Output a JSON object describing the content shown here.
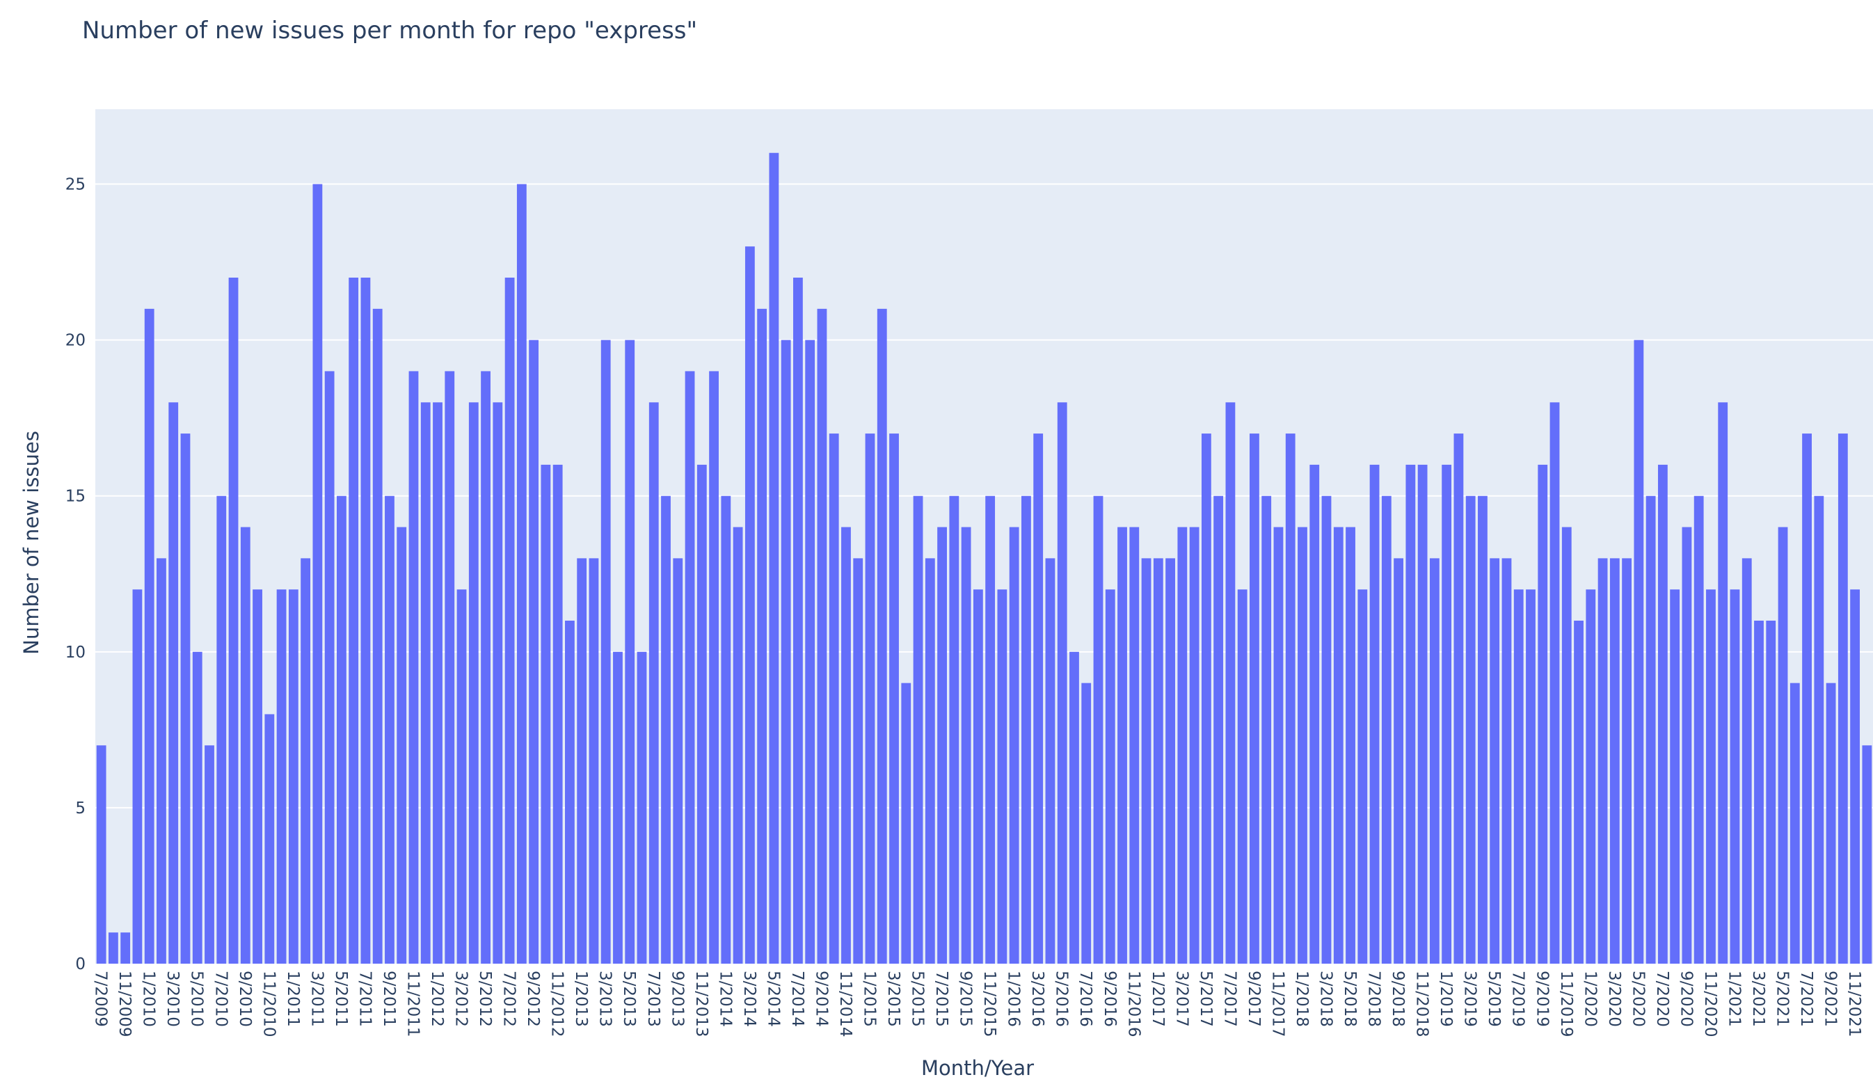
{
  "chart_data": {
    "type": "bar",
    "title": "Number of new issues per month for repo \"express\"",
    "xlabel": "Month/Year",
    "ylabel": "Number of new issues",
    "ylim": [
      0,
      27.4
    ],
    "y_ticks": [
      0,
      5,
      10,
      15,
      20,
      25
    ],
    "grid": true,
    "colors": {
      "bar": "#636efa",
      "plot_bg": "#e5ecf6",
      "grid": "#ffffff",
      "text": "#2a3f5f"
    },
    "categories": [
      "7/2009",
      "10/2009",
      "11/2009",
      "12/2009",
      "1/2010",
      "2/2010",
      "3/2010",
      "4/2010",
      "5/2010",
      "6/2010",
      "7/2010",
      "8/2010",
      "9/2010",
      "10/2010",
      "11/2010",
      "12/2010",
      "1/2011",
      "2/2011",
      "3/2011",
      "4/2011",
      "5/2011",
      "6/2011",
      "7/2011",
      "8/2011",
      "9/2011",
      "10/2011",
      "11/2011",
      "12/2011",
      "1/2012",
      "2/2012",
      "3/2012",
      "4/2012",
      "5/2012",
      "6/2012",
      "7/2012",
      "8/2012",
      "9/2012",
      "10/2012",
      "11/2012",
      "12/2012",
      "1/2013",
      "2/2013",
      "3/2013",
      "4/2013",
      "5/2013",
      "6/2013",
      "7/2013",
      "8/2013",
      "9/2013",
      "10/2013",
      "11/2013",
      "12/2013",
      "1/2014",
      "2/2014",
      "3/2014",
      "4/2014",
      "5/2014",
      "6/2014",
      "7/2014",
      "8/2014",
      "9/2014",
      "10/2014",
      "11/2014",
      "12/2014",
      "1/2015",
      "2/2015",
      "3/2015",
      "4/2015",
      "5/2015",
      "6/2015",
      "7/2015",
      "8/2015",
      "9/2015",
      "10/2015",
      "11/2015",
      "12/2015",
      "1/2016",
      "2/2016",
      "3/2016",
      "4/2016",
      "5/2016",
      "6/2016",
      "7/2016",
      "8/2016",
      "9/2016",
      "10/2016",
      "11/2016",
      "12/2016",
      "1/2017",
      "2/2017",
      "3/2017",
      "4/2017",
      "5/2017",
      "6/2017",
      "7/2017",
      "8/2017",
      "9/2017",
      "10/2017",
      "11/2017",
      "12/2017",
      "1/2018",
      "2/2018",
      "3/2018",
      "4/2018",
      "5/2018",
      "6/2018",
      "7/2018",
      "8/2018",
      "9/2018",
      "10/2018",
      "11/2018",
      "12/2018",
      "1/2019",
      "2/2019",
      "3/2019",
      "4/2019",
      "5/2019",
      "6/2019",
      "7/2019",
      "8/2019",
      "9/2019",
      "10/2019",
      "11/2019",
      "12/2019",
      "1/2020",
      "2/2020",
      "3/2020",
      "4/2020",
      "5/2020",
      "6/2020",
      "7/2020",
      "8/2020",
      "9/2020",
      "10/2020",
      "11/2020",
      "12/2020",
      "1/2021",
      "2/2021",
      "3/2021",
      "4/2021",
      "5/2021",
      "6/2021",
      "7/2021",
      "8/2021",
      "9/2021",
      "10/2021",
      "11/2021",
      "12/2021"
    ],
    "values": [
      7,
      1,
      1,
      12,
      21,
      13,
      18,
      17,
      10,
      7,
      15,
      22,
      14,
      12,
      8,
      12,
      12,
      13,
      25,
      19,
      15,
      22,
      22,
      21,
      15,
      14,
      19,
      18,
      18,
      19,
      12,
      18,
      19,
      18,
      22,
      25,
      20,
      16,
      16,
      11,
      13,
      13,
      20,
      10,
      20,
      10,
      18,
      15,
      13,
      19,
      16,
      19,
      15,
      14,
      23,
      21,
      26,
      20,
      22,
      20,
      21,
      17,
      14,
      13,
      17,
      21,
      17,
      9,
      15,
      13,
      14,
      15,
      14,
      12,
      15,
      12,
      14,
      15,
      17,
      13,
      18,
      10,
      9,
      15,
      12,
      14,
      14,
      13,
      13,
      13,
      14,
      14,
      17,
      15,
      18,
      12,
      17,
      15,
      14,
      17,
      14,
      16,
      15,
      14,
      14,
      12,
      16,
      15,
      13,
      16,
      16,
      13,
      16,
      17,
      15,
      15,
      13,
      13,
      12,
      12,
      16,
      18,
      14,
      11,
      12,
      13,
      13,
      13,
      20,
      15,
      16,
      12,
      14,
      15,
      12,
      18,
      12,
      13,
      11,
      11,
      14,
      9,
      17,
      15,
      9,
      17,
      12,
      7
    ],
    "x_tick_labels": [
      "7/2009",
      "11/2009",
      "1/2010",
      "3/2010",
      "5/2010",
      "7/2010",
      "9/2010",
      "11/2010",
      "1/2011",
      "3/2011",
      "5/2011",
      "7/2011",
      "9/2011",
      "11/2011",
      "1/2012",
      "3/2012",
      "5/2012",
      "7/2012",
      "9/2012",
      "11/2012",
      "1/2013",
      "3/2013",
      "5/2013",
      "7/2013",
      "9/2013",
      "11/2013",
      "1/2014",
      "3/2014",
      "5/2014",
      "7/2014",
      "9/2014",
      "11/2014",
      "1/2015",
      "3/2015",
      "5/2015",
      "7/2015",
      "9/2015",
      "11/2015",
      "1/2016",
      "3/2016",
      "5/2016",
      "7/2016",
      "9/2016",
      "11/2016",
      "1/2017",
      "3/2017",
      "5/2017",
      "7/2017",
      "9/2017",
      "11/2017",
      "1/2018",
      "3/2018",
      "5/2018",
      "7/2018",
      "9/2018",
      "11/2018",
      "1/2019",
      "3/2019",
      "5/2019",
      "7/2019",
      "9/2019",
      "11/2019",
      "1/2020",
      "3/2020",
      "5/2020",
      "7/2020",
      "9/2020",
      "11/2020",
      "1/2021",
      "3/2021",
      "5/2021",
      "7/2021",
      "9/2021",
      "11/2021"
    ]
  }
}
